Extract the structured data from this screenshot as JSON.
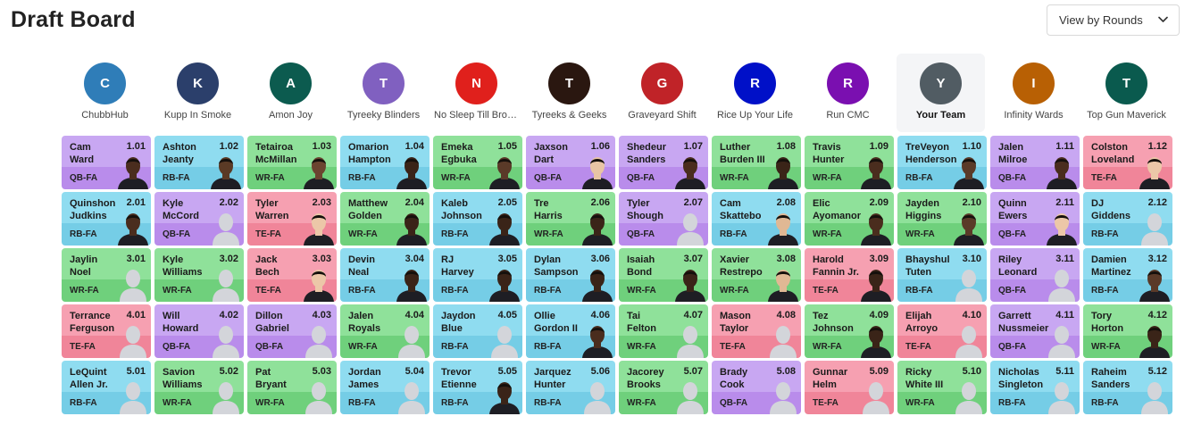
{
  "header": {
    "title": "Draft Board",
    "view_select_value": "View by Rounds"
  },
  "colors": {
    "QB": [
      "#c8a7f2",
      "#b98ceb"
    ],
    "RB": [
      "#8fdcf0",
      "#75cde6"
    ],
    "WR": [
      "#8fe19a",
      "#6fd07c"
    ],
    "TE": [
      "#f6a0b1",
      "#f08599"
    ]
  },
  "teams": [
    {
      "initial": "C",
      "name": "ChubbHub",
      "color": "#2f7db8"
    },
    {
      "initial": "K",
      "name": "Kupp In Smoke",
      "color": "#2b3f6b"
    },
    {
      "initial": "A",
      "name": "Amon Joy",
      "color": "#0c5b4f"
    },
    {
      "initial": "T",
      "name": "Tyreeky Blinders",
      "color": "#8060c0"
    },
    {
      "initial": "N",
      "name": "No Sleep Till Brooklyn",
      "color": "#e0201c"
    },
    {
      "initial": "T",
      "name": "Tyreeks & Geeks",
      "color": "#2a1710"
    },
    {
      "initial": "G",
      "name": "Graveyard Shift",
      "color": "#c02328"
    },
    {
      "initial": "R",
      "name": "Rice Up Your Life",
      "color": "#0010c8"
    },
    {
      "initial": "R",
      "name": "Run CMC",
      "color": "#7a0fb0"
    },
    {
      "initial": "Y",
      "name": "Your Team",
      "color": "#515c63",
      "active": true
    },
    {
      "initial": "I",
      "name": "Infinity Wards",
      "color": "#b86004"
    },
    {
      "initial": "T",
      "name": "Top Gun Maverick",
      "color": "#0a5a4e"
    }
  ],
  "rounds": [
    [
      {
        "first": "Cam",
        "last": "Ward",
        "num": "1.01",
        "pos": "QB",
        "team": "FA",
        "photo": true,
        "skin": "#4a2d1e"
      },
      {
        "first": "Ashton",
        "last": "Jeanty",
        "num": "1.02",
        "pos": "RB",
        "team": "FA",
        "photo": true,
        "skin": "#5a3a25"
      },
      {
        "first": "Tetairoa",
        "last": "McMillan",
        "num": "1.03",
        "pos": "WR",
        "team": "FA",
        "photo": true,
        "skin": "#6b4430"
      },
      {
        "first": "Omarion",
        "last": "Hampton",
        "num": "1.04",
        "pos": "RB",
        "team": "FA",
        "photo": true,
        "skin": "#3a2418"
      },
      {
        "first": "Emeka",
        "last": "Egbuka",
        "num": "1.05",
        "pos": "WR",
        "team": "FA",
        "photo": true,
        "skin": "#5a3a28"
      },
      {
        "first": "Jaxson",
        "last": "Dart",
        "num": "1.06",
        "pos": "QB",
        "team": "FA",
        "photo": true,
        "skin": "#e8c4a4"
      },
      {
        "first": "Shedeur",
        "last": "Sanders",
        "num": "1.07",
        "pos": "QB",
        "team": "FA",
        "photo": true,
        "skin": "#4a2d1e"
      },
      {
        "first": "Luther",
        "last": "Burden III",
        "num": "1.08",
        "pos": "WR",
        "team": "FA",
        "photo": true,
        "skin": "#3a2418"
      },
      {
        "first": "Travis",
        "last": "Hunter",
        "num": "1.09",
        "pos": "WR",
        "team": "FA",
        "photo": true,
        "skin": "#4a2d1e"
      },
      {
        "first": "TreVeyon",
        "last": "Henderson",
        "num": "1.10",
        "pos": "RB",
        "team": "FA",
        "photo": true,
        "skin": "#5a3a28"
      },
      {
        "first": "Jalen",
        "last": "Milroe",
        "num": "1.11",
        "pos": "QB",
        "team": "FA",
        "photo": true,
        "skin": "#4a2d1e"
      },
      {
        "first": "Colston",
        "last": "Loveland",
        "num": "1.12",
        "pos": "TE",
        "team": "FA",
        "photo": true,
        "skin": "#ecc7a8"
      }
    ],
    [
      {
        "first": "Quinshon",
        "last": "Judkins",
        "num": "2.01",
        "pos": "RB",
        "team": "FA",
        "photo": true,
        "skin": "#4a2d1e"
      },
      {
        "first": "Kyle",
        "last": "McCord",
        "num": "2.02",
        "pos": "QB",
        "team": "FA",
        "photo": false
      },
      {
        "first": "Tyler",
        "last": "Warren",
        "num": "2.03",
        "pos": "TE",
        "team": "FA",
        "photo": true,
        "skin": "#ecc7a8"
      },
      {
        "first": "Matthew",
        "last": "Golden",
        "num": "2.04",
        "pos": "WR",
        "team": "FA",
        "photo": true,
        "skin": "#3a2418"
      },
      {
        "first": "Kaleb",
        "last": "Johnson",
        "num": "2.05",
        "pos": "RB",
        "team": "FA",
        "photo": true,
        "skin": "#3a2418"
      },
      {
        "first": "Tre",
        "last": "Harris",
        "num": "2.06",
        "pos": "WR",
        "team": "FA",
        "photo": true,
        "skin": "#3a2418"
      },
      {
        "first": "Tyler",
        "last": "Shough",
        "num": "2.07",
        "pos": "QB",
        "team": "FA",
        "photo": false
      },
      {
        "first": "Cam",
        "last": "Skattebo",
        "num": "2.08",
        "pos": "RB",
        "team": "FA",
        "photo": true,
        "skin": "#e0b894"
      },
      {
        "first": "Elic",
        "last": "Ayomanor",
        "num": "2.09",
        "pos": "WR",
        "team": "FA",
        "photo": true,
        "skin": "#4a2d1e"
      },
      {
        "first": "Jayden",
        "last": "Higgins",
        "num": "2.10",
        "pos": "WR",
        "team": "FA",
        "photo": true,
        "skin": "#5a3a28"
      },
      {
        "first": "Quinn",
        "last": "Ewers",
        "num": "2.11",
        "pos": "QB",
        "team": "FA",
        "photo": true,
        "skin": "#ecc7a8"
      },
      {
        "first": "DJ",
        "last": "Giddens",
        "num": "2.12",
        "pos": "RB",
        "team": "FA",
        "photo": false
      }
    ],
    [
      {
        "first": "Jaylin",
        "last": "Noel",
        "num": "3.01",
        "pos": "WR",
        "team": "FA",
        "photo": false
      },
      {
        "first": "Kyle",
        "last": "Williams",
        "num": "3.02",
        "pos": "WR",
        "team": "FA",
        "photo": false
      },
      {
        "first": "Jack",
        "last": "Bech",
        "num": "3.03",
        "pos": "TE",
        "team": "FA",
        "photo": true,
        "skin": "#ecc7a8"
      },
      {
        "first": "Devin",
        "last": "Neal",
        "num": "3.04",
        "pos": "RB",
        "team": "FA",
        "photo": true,
        "skin": "#3a2418"
      },
      {
        "first": "RJ",
        "last": "Harvey",
        "num": "3.05",
        "pos": "RB",
        "team": "FA",
        "photo": true,
        "skin": "#3a2418"
      },
      {
        "first": "Dylan",
        "last": "Sampson",
        "num": "3.06",
        "pos": "RB",
        "team": "FA",
        "photo": true,
        "skin": "#3a2418"
      },
      {
        "first": "Isaiah",
        "last": "Bond",
        "num": "3.07",
        "pos": "WR",
        "team": "FA",
        "photo": true,
        "skin": "#3a2418"
      },
      {
        "first": "Xavier",
        "last": "Restrepo",
        "num": "3.08",
        "pos": "WR",
        "team": "FA",
        "photo": true,
        "skin": "#e0b894"
      },
      {
        "first": "Harold",
        "last": "Fannin Jr.",
        "num": "3.09",
        "pos": "TE",
        "team": "FA",
        "photo": true,
        "skin": "#3a2418"
      },
      {
        "first": "Bhayshul",
        "last": "Tuten",
        "num": "3.10",
        "pos": "RB",
        "team": "FA",
        "photo": false
      },
      {
        "first": "Riley",
        "last": "Leonard",
        "num": "3.11",
        "pos": "QB",
        "team": "FA",
        "photo": false
      },
      {
        "first": "Damien",
        "last": "Martinez",
        "num": "3.12",
        "pos": "RB",
        "team": "FA",
        "photo": true,
        "skin": "#5a3a28"
      }
    ],
    [
      {
        "first": "Terrance",
        "last": "Ferguson",
        "num": "4.01",
        "pos": "TE",
        "team": "FA",
        "photo": false
      },
      {
        "first": "Will",
        "last": "Howard",
        "num": "4.02",
        "pos": "QB",
        "team": "FA",
        "photo": false
      },
      {
        "first": "Dillon",
        "last": "Gabriel",
        "num": "4.03",
        "pos": "QB",
        "team": "FA",
        "photo": false
      },
      {
        "first": "Jalen",
        "last": "Royals",
        "num": "4.04",
        "pos": "WR",
        "team": "FA",
        "photo": false
      },
      {
        "first": "Jaydon",
        "last": "Blue",
        "num": "4.05",
        "pos": "RB",
        "team": "FA",
        "photo": false
      },
      {
        "first": "Ollie",
        "last": "Gordon II",
        "num": "4.06",
        "pos": "RB",
        "team": "FA",
        "photo": true,
        "skin": "#4a2d1e"
      },
      {
        "first": "Tai",
        "last": "Felton",
        "num": "4.07",
        "pos": "WR",
        "team": "FA",
        "photo": false
      },
      {
        "first": "Mason",
        "last": "Taylor",
        "num": "4.08",
        "pos": "TE",
        "team": "FA",
        "photo": false
      },
      {
        "first": "Tez",
        "last": "Johnson",
        "num": "4.09",
        "pos": "WR",
        "team": "FA",
        "photo": true,
        "skin": "#3a2418"
      },
      {
        "first": "Elijah",
        "last": "Arroyo",
        "num": "4.10",
        "pos": "TE",
        "team": "FA",
        "photo": false
      },
      {
        "first": "Garrett",
        "last": "Nussmeier",
        "num": "4.11",
        "pos": "QB",
        "team": "FA",
        "photo": false
      },
      {
        "first": "Tory",
        "last": "Horton",
        "num": "4.12",
        "pos": "WR",
        "team": "FA",
        "photo": true,
        "skin": "#3a2418"
      }
    ],
    [
      {
        "first": "LeQuint",
        "last": "Allen Jr.",
        "num": "5.01",
        "pos": "RB",
        "team": "FA",
        "photo": false
      },
      {
        "first": "Savion",
        "last": "Williams",
        "num": "5.02",
        "pos": "WR",
        "team": "FA",
        "photo": false
      },
      {
        "first": "Pat",
        "last": "Bryant",
        "num": "5.03",
        "pos": "WR",
        "team": "FA",
        "photo": false
      },
      {
        "first": "Jordan",
        "last": "James",
        "num": "5.04",
        "pos": "RB",
        "team": "FA",
        "photo": false
      },
      {
        "first": "Trevor",
        "last": "Etienne",
        "num": "5.05",
        "pos": "RB",
        "team": "FA",
        "photo": true,
        "skin": "#3a2418"
      },
      {
        "first": "Jarquez",
        "last": "Hunter",
        "num": "5.06",
        "pos": "RB",
        "team": "FA",
        "photo": false
      },
      {
        "first": "Jacorey",
        "last": "Brooks",
        "num": "5.07",
        "pos": "WR",
        "team": "FA",
        "photo": false
      },
      {
        "first": "Brady",
        "last": "Cook",
        "num": "5.08",
        "pos": "QB",
        "team": "FA",
        "photo": false
      },
      {
        "first": "Gunnar",
        "last": "Helm",
        "num": "5.09",
        "pos": "TE",
        "team": "FA",
        "photo": false
      },
      {
        "first": "Ricky",
        "last": "White III",
        "num": "5.10",
        "pos": "WR",
        "team": "FA",
        "photo": false
      },
      {
        "first": "Nicholas",
        "last": "Singleton",
        "num": "5.11",
        "pos": "RB",
        "team": "FA",
        "photo": false
      },
      {
        "first": "Raheim",
        "last": "Sanders",
        "num": "5.12",
        "pos": "RB",
        "team": "FA",
        "photo": false
      }
    ]
  ]
}
